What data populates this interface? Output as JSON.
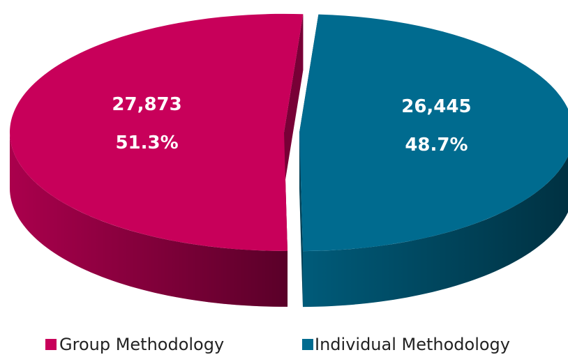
{
  "chart_data": {
    "type": "pie",
    "categories": [
      "Group Methodology",
      "Individual Methodology"
    ],
    "values": [
      27873,
      26445
    ],
    "value_labels": [
      "27,873",
      "26,445"
    ],
    "percents": [
      51.3,
      48.7
    ],
    "percent_labels": [
      "51.3%",
      "48.7%"
    ],
    "colors": [
      "#c8005a",
      "#006b8f"
    ],
    "legend": "bottom"
  }
}
